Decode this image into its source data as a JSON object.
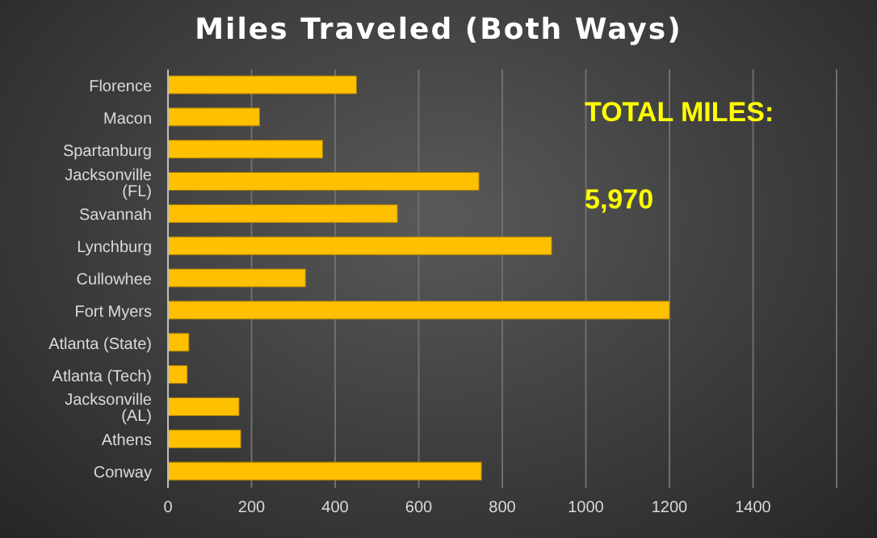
{
  "chart_data": {
    "type": "bar",
    "orientation": "horizontal",
    "title": "Miles Traveled (Both Ways)",
    "categories": [
      "Florence",
      "Macon",
      "Spartanburg",
      "Jacksonville (FL)",
      "Savannah",
      "Lynchburg",
      "Cullowhee",
      "Fort Myers",
      "Atlanta (State)",
      "Atlanta (Tech)",
      "Jacksonville (AL)",
      "Athens",
      "Conway"
    ],
    "values": [
      451,
      219,
      370,
      744,
      549,
      918,
      329,
      1200,
      50,
      46,
      170,
      174,
      750
    ],
    "color": "#ffc000",
    "xlim": [
      0,
      1600
    ],
    "xticks": [
      0,
      200,
      400,
      600,
      800,
      1000,
      1200,
      1400
    ],
    "grid": "x",
    "legend": false,
    "annotations": [
      "TOTAL MILES:",
      "5,970"
    ]
  }
}
